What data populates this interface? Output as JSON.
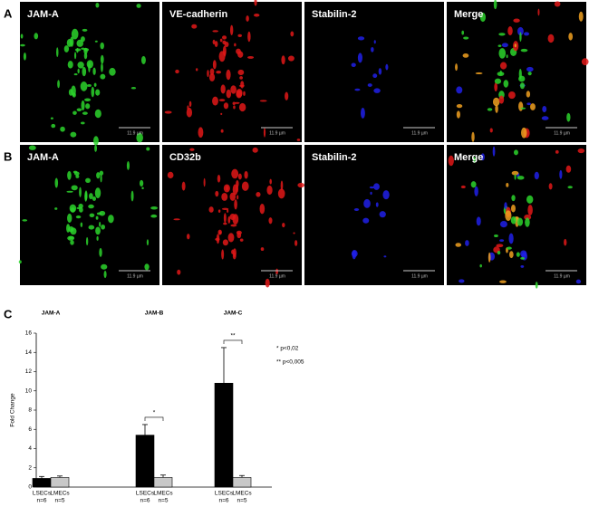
{
  "figure": {
    "rows": [
      {
        "label": "A",
        "titles": [
          "JAM-A",
          "VE-cadherin",
          "Stabilin-2",
          "Merge"
        ],
        "scale": "11.9 µm"
      },
      {
        "label": "B",
        "titles": [
          "JAM-A",
          "CD32b",
          "Stabilin-2",
          "Merge"
        ],
        "scale": "11.9 µm"
      }
    ],
    "panel_c_label": "C"
  },
  "chart_data": {
    "type": "bar",
    "y_label": "Fold Change",
    "categories": [
      "JAM-A",
      "JAM-B",
      "JAM-C"
    ],
    "series": [
      {
        "name": "LSECs",
        "n_label": "n=6",
        "color": "#000000",
        "values": [
          0.9,
          5.4,
          10.8
        ],
        "errors": [
          0.2,
          1.1,
          3.7
        ]
      },
      {
        "name": "LMECs",
        "n_label": "n=5",
        "color": "#c8c8c8",
        "values": [
          1.0,
          1.0,
          1.0
        ],
        "errors": [
          0.15,
          0.25,
          0.2
        ]
      }
    ],
    "significance": [
      null,
      "*",
      "**"
    ],
    "annotations": [
      "* p<0,02",
      "** p<0,005"
    ],
    "ylim": [
      0,
      16
    ],
    "yticks": [
      0,
      2,
      4,
      6,
      8,
      10,
      12,
      14,
      16
    ]
  }
}
